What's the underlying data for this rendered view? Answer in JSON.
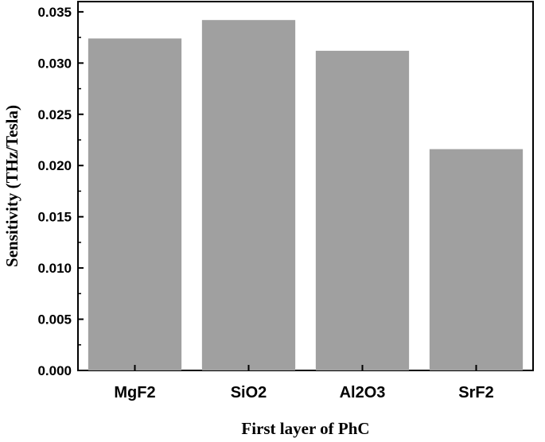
{
  "chart_data": {
    "type": "bar",
    "title": "",
    "xlabel": "First layer of PhC",
    "ylabel": "Sensitivity (THz/Tesla)",
    "categories": [
      "MgF2",
      "SiO2",
      "Al2O3",
      "SrF2"
    ],
    "values": [
      0.0324,
      0.0342,
      0.0312,
      0.0216
    ],
    "ylim": [
      0,
      0.036
    ],
    "yticks": [
      "0.000",
      "0.005",
      "0.010",
      "0.015",
      "0.020",
      "0.025",
      "0.030",
      "0.035"
    ],
    "grid": false,
    "legend": "none",
    "bar_color": "#a0a0a0"
  }
}
